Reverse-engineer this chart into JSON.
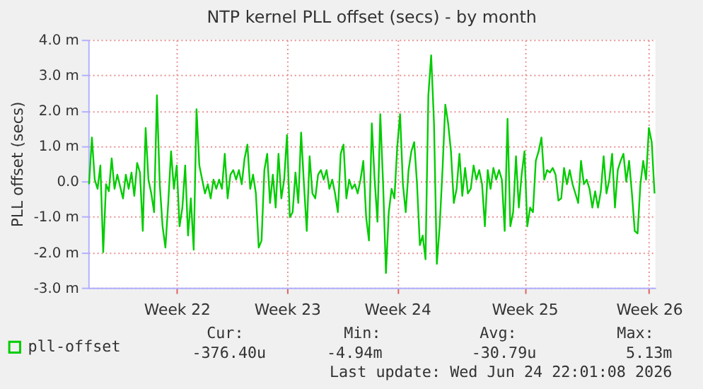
{
  "chart_data": {
    "type": "line",
    "title": "NTP kernel PLL offset (secs) - by month",
    "ylabel": "PLL offset (secs)",
    "ylim": [
      -3,
      4
    ],
    "categories": [
      null,
      null,
      null,
      null,
      null,
      null,
      null,
      null,
      null,
      null,
      null,
      null,
      null,
      null,
      null,
      null,
      null,
      null,
      null,
      null,
      null,
      null,
      null,
      null,
      null,
      null,
      null,
      null,
      null,
      null,
      null,
      "Week 22",
      null,
      null,
      null,
      null,
      null,
      null,
      null,
      null,
      null,
      null,
      null,
      null,
      null,
      null,
      null,
      null,
      null,
      null,
      null,
      null,
      null,
      null,
      null,
      null,
      null,
      null,
      null,
      null,
      null,
      null,
      null,
      null,
      null,
      null,
      null,
      null,
      null,
      null,
      "Week 23",
      null,
      null,
      null,
      null,
      null,
      null,
      null,
      null,
      null,
      null,
      null,
      null,
      null,
      null,
      null,
      null,
      null,
      null,
      null,
      null,
      null,
      null,
      null,
      null,
      null,
      null,
      null,
      null,
      null,
      null,
      null,
      null,
      null,
      null,
      null,
      null,
      null,
      null,
      "Week 24",
      null,
      null,
      null,
      null,
      null,
      null,
      null,
      null,
      null,
      null,
      null,
      null,
      null,
      null,
      null,
      null,
      null,
      null,
      null,
      null,
      null,
      null,
      null,
      null,
      null,
      null,
      null,
      null,
      null,
      null,
      null,
      null,
      null,
      null,
      null,
      null,
      null,
      null,
      null,
      null,
      null,
      null,
      null,
      null,
      "Week 25",
      null,
      null,
      null,
      null,
      null,
      null,
      null,
      null,
      null,
      null,
      null,
      null,
      null,
      null,
      null,
      null,
      null,
      null,
      null,
      null,
      null,
      null,
      null,
      null,
      null,
      null,
      null,
      null,
      null,
      null,
      null,
      null,
      null,
      null,
      null,
      null,
      null,
      null,
      null,
      null,
      null,
      null,
      null,
      "Week 26",
      null,
      null
    ],
    "yticks": [
      {
        "value": -3,
        "label": "-3.0 m"
      },
      {
        "value": -2,
        "label": "-2.0 m"
      },
      {
        "value": -1,
        "label": "-1.0 m"
      },
      {
        "value": 0,
        "label": "0.0"
      },
      {
        "value": 1,
        "label": "1.0 m"
      },
      {
        "value": 2,
        "label": "2.0 m"
      },
      {
        "value": 3,
        "label": "3.0 m"
      },
      {
        "value": 4,
        "label": "4.0 m"
      }
    ],
    "grid": true,
    "legend": "bottom left",
    "marker": "none",
    "line_style": "solid",
    "series": [
      {
        "name": "pll-offset",
        "color": "#00cc00",
        "values": [
          -0.08,
          1.24,
          0.05,
          -0.21,
          0.45,
          -2.0,
          -0.08,
          -0.28,
          0.65,
          -0.21,
          0.19,
          -0.15,
          -0.48,
          0.19,
          -0.21,
          0.25,
          -0.41,
          0.52,
          0.25,
          -1.4,
          1.51,
          0.05,
          -0.34,
          -0.87,
          2.43,
          -0.08,
          -1.27,
          -1.87,
          -0.61,
          0.85,
          -0.21,
          0.45,
          -1.27,
          -0.74,
          0.45,
          -1.53,
          -0.48,
          -1.93,
          2.04,
          0.45,
          0.05,
          -0.34,
          -0.08,
          -0.48,
          0.05,
          -0.21,
          0.05,
          -0.21,
          0.78,
          -0.48,
          0.19,
          0.32,
          0.05,
          0.32,
          -0.08,
          0.65,
          1.04,
          -0.21,
          0.19,
          -0.34,
          -1.87,
          -1.67,
          0.32,
          0.78,
          -0.61,
          0.19,
          -0.74,
          0.78,
          -0.48,
          0.05,
          1.31,
          -1.01,
          -0.87,
          0.25,
          -0.61,
          1.38,
          -0.08,
          -1.4,
          0.71,
          -0.34,
          -0.48,
          0.19,
          0.32,
          0.05,
          0.32,
          -0.21,
          0.05,
          -0.34,
          -0.87,
          0.78,
          1.04,
          -0.48,
          0.05,
          -0.21,
          -0.08,
          -0.34,
          0.05,
          0.58,
          -1.01,
          -1.67,
          1.64,
          0.05,
          -1.14,
          1.9,
          -0.08,
          -2.59,
          -0.87,
          -0.21,
          -0.48,
          0.98,
          1.9,
          -0.08,
          -0.87,
          0.32,
          0.85,
          1.11,
          -0.08,
          -1.8,
          -1.53,
          -2.2,
          2.43,
          3.56,
          1.64,
          -2.33,
          -1.27,
          0.32,
          2.17,
          1.64,
          0.85,
          -0.61,
          -0.21,
          0.78,
          -0.41,
          0.38,
          -0.34,
          -0.21,
          0.45,
          0.05,
          0.32,
          -0.08,
          -1.27,
          0.32,
          -0.21,
          0.38,
          0.05,
          0.32,
          0.05,
          -1.4,
          1.77,
          -1.27,
          -0.87,
          0.71,
          -0.74,
          0.19,
          0.85,
          -1.27,
          -0.74,
          -0.87,
          0.58,
          0.85,
          1.24,
          0.05,
          0.32,
          0.25,
          0.38,
          0.19,
          -0.54,
          -0.48,
          0.38,
          -0.08,
          0.32,
          -0.08,
          -0.34,
          -0.61,
          0.58,
          -0.08,
          0.05,
          -0.21,
          -0.74,
          -0.28,
          -0.74,
          -0.28,
          0.71,
          -0.34,
          0.05,
          0.78,
          -0.74,
          0.32,
          0.58,
          0.78,
          -0.01,
          0.58,
          -0.34,
          -1.4,
          -1.47,
          -0.08,
          0.58,
          0.05,
          1.51,
          1.11,
          -0.34
        ]
      }
    ],
    "annotations": [
      "Cur:",
      "Min:",
      "Avg:",
      "Max:",
      "-376.40u",
      "-4.94m",
      "-30.79u",
      "5.13m",
      "Last update: Wed Jun 24 22:01:08 2026"
    ]
  }
}
